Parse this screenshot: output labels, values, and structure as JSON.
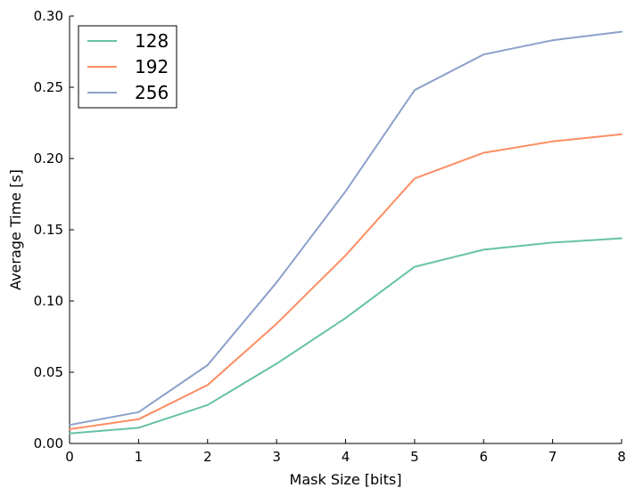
{
  "chart_data": {
    "type": "line",
    "title": "",
    "xlabel": "Mask Size [bits]",
    "ylabel": "Average Time [s]",
    "x": [
      0,
      1,
      2,
      3,
      4,
      5,
      6,
      7,
      8
    ],
    "xlim": [
      0,
      8
    ],
    "ylim": [
      0,
      0.3
    ],
    "xticks": [
      "0",
      "1",
      "2",
      "3",
      "4",
      "5",
      "6",
      "7",
      "8"
    ],
    "yticks": [
      "0.00",
      "0.05",
      "0.10",
      "0.15",
      "0.20",
      "0.25",
      "0.30"
    ],
    "grid": false,
    "legend_position": "top-left",
    "series": [
      {
        "name": "128",
        "color": "#66c2a5",
        "values": [
          0.007,
          0.011,
          0.027,
          0.056,
          0.088,
          0.124,
          0.136,
          0.141,
          0.144
        ]
      },
      {
        "name": "192",
        "color": "#fc8d62",
        "values": [
          0.01,
          0.017,
          0.041,
          0.084,
          0.132,
          0.186,
          0.204,
          0.212,
          0.217
        ]
      },
      {
        "name": "256",
        "color": "#8da0cb",
        "values": [
          0.013,
          0.022,
          0.055,
          0.113,
          0.177,
          0.248,
          0.273,
          0.283,
          0.289
        ]
      }
    ]
  }
}
